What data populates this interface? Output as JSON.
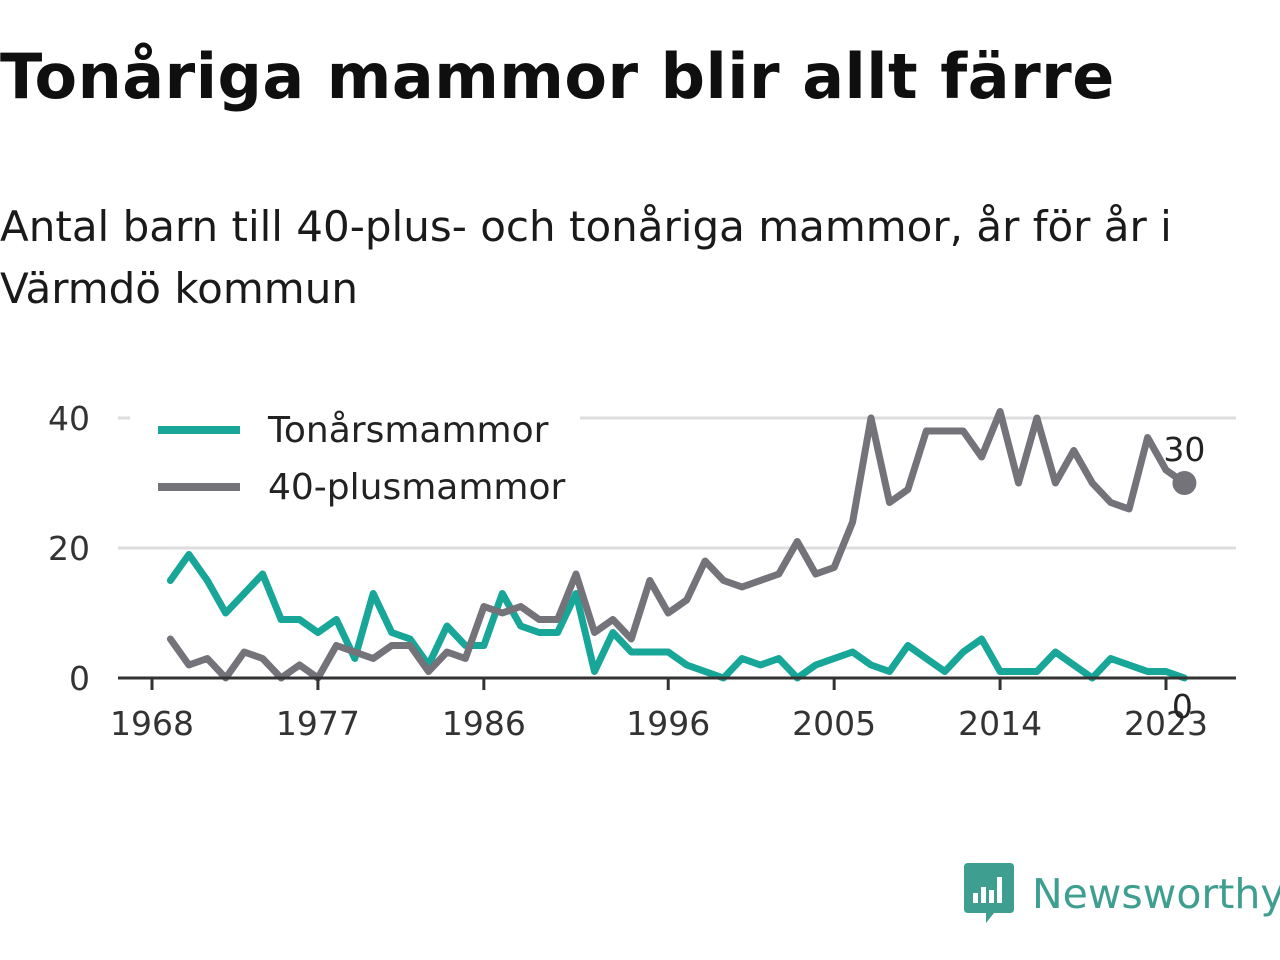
{
  "header": {
    "title": "Tonåriga mammor blir allt färre",
    "subtitle": "Antal barn till 40-plus- och tonåriga mammor, år för år i Värmdö kommun"
  },
  "brand": {
    "name": "Newsworthy",
    "icon": "newsworthy-logo-icon",
    "color": "#3e9f91"
  },
  "chart_data": {
    "type": "line",
    "title": "",
    "xlabel": "",
    "ylabel": "",
    "x": [
      1969,
      1970,
      1971,
      1972,
      1973,
      1974,
      1975,
      1976,
      1977,
      1978,
      1979,
      1980,
      1981,
      1982,
      1983,
      1984,
      1985,
      1986,
      1987,
      1988,
      1989,
      1990,
      1991,
      1992,
      1993,
      1994,
      1995,
      1996,
      1997,
      1998,
      1999,
      2000,
      2001,
      2002,
      2003,
      2004,
      2005,
      2006,
      2007,
      2008,
      2009,
      2010,
      2011,
      2012,
      2013,
      2014,
      2015,
      2016,
      2017,
      2018,
      2019,
      2020,
      2021,
      2022,
      2023,
      2024
    ],
    "xticks": [
      "1968",
      "1977",
      "1986",
      "1996",
      "2005",
      "2014",
      "2023"
    ],
    "yticks": [
      "0",
      "20",
      "40"
    ],
    "ylim": [
      0,
      40
    ],
    "grid": true,
    "legend_position": "top-left",
    "series": [
      {
        "name": "Tonårsmammor",
        "color": "#17a697",
        "values": [
          15,
          19,
          15,
          10,
          13,
          16,
          9,
          9,
          7,
          9,
          3,
          13,
          7,
          6,
          2,
          8,
          5,
          5,
          13,
          8,
          7,
          7,
          13,
          1,
          7,
          4,
          4,
          4,
          2,
          1,
          0,
          3,
          2,
          3,
          0,
          2,
          3,
          4,
          2,
          1,
          5,
          3,
          1,
          4,
          6,
          1,
          1,
          1,
          4,
          2,
          0,
          3,
          2,
          1,
          1,
          0
        ],
        "end_label": "0"
      },
      {
        "name": "40-plusmammor",
        "color": "#74737a",
        "values": [
          6,
          2,
          3,
          0,
          4,
          3,
          0,
          2,
          0,
          5,
          4,
          3,
          5,
          5,
          1,
          4,
          3,
          11,
          10,
          11,
          9,
          9,
          16,
          7,
          9,
          6,
          15,
          10,
          12,
          18,
          15,
          14,
          15,
          16,
          21,
          16,
          17,
          24,
          40,
          27,
          29,
          38,
          38,
          38,
          34,
          41,
          30,
          40,
          30,
          35,
          30,
          27,
          26,
          37,
          32,
          30
        ],
        "end_label": "30"
      }
    ]
  }
}
